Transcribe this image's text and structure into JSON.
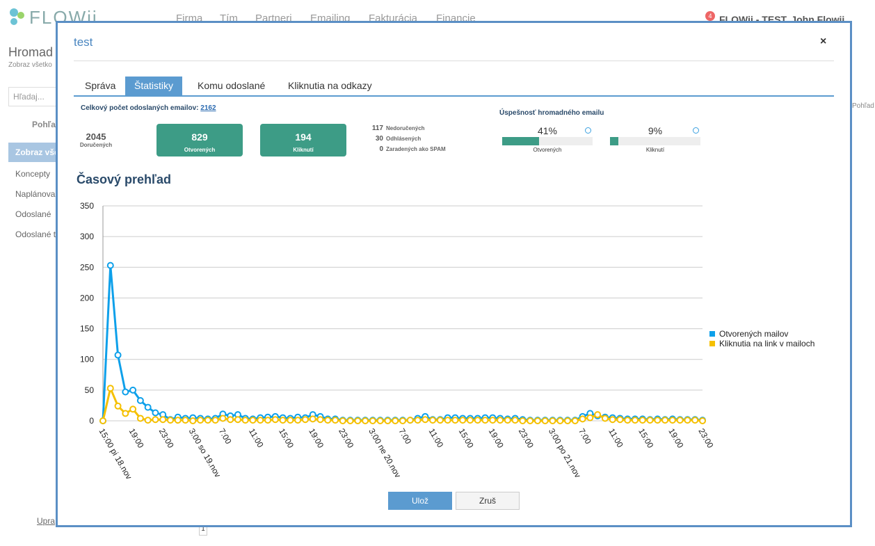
{
  "app": {
    "logo": "FLOWii",
    "nav": [
      "Firma",
      "Tím",
      "Partneri",
      "Emailing",
      "Fakturácia",
      "Financie"
    ],
    "badge": "4",
    "user": "FLOWii - TEST, John Flowii",
    "sidebar": {
      "title": "Hromad",
      "subtitle": "Zobraz všetko",
      "search": "Hľadaj...",
      "view": "Pohľa",
      "items": [
        "Zobraz vše",
        "Koncepty",
        "Naplánova",
        "Odoslané",
        "Odoslané t"
      ],
      "footer": "Upra"
    },
    "right_label": "Pohľad",
    "pagination": "1"
  },
  "modal": {
    "title": "test",
    "close": "×",
    "tabs": [
      "Správa",
      "Štatistiky",
      "Komu odoslané",
      "Kliknutia na odkazy"
    ],
    "summary": {
      "label": "Celkový počet odoslaných emailov:",
      "total": "2162"
    },
    "delivered": {
      "value": "2045",
      "label": "Doručených"
    },
    "opened": {
      "value": "829",
      "label": "Otvorených"
    },
    "clicked": {
      "value": "194",
      "label": "Kliknutí"
    },
    "other": [
      {
        "value": "117",
        "label": "Nedoručených"
      },
      {
        "value": "30",
        "label": "Odhlásených"
      },
      {
        "value": "0",
        "label": "Zaradených ako SPAM"
      }
    ],
    "success": {
      "title": "Úspešnosť hromadného emailu",
      "items": [
        {
          "value": 41,
          "label": "41%",
          "name": "Otvorených"
        },
        {
          "value": 9,
          "label": "9%",
          "name": "Kliknutí"
        }
      ]
    },
    "buttons": {
      "save": "Ulož",
      "cancel": "Zruš"
    }
  },
  "chart_data": {
    "type": "line",
    "title": "Časový prehľad",
    "categories": [
      "15:00 pi 18.nov",
      null,
      null,
      null,
      "19:00",
      null,
      null,
      null,
      "23:00",
      null,
      null,
      null,
      "3:00 so 19.nov",
      null,
      null,
      null,
      "7:00",
      null,
      null,
      null,
      "11:00",
      null,
      null,
      null,
      "15:00",
      null,
      null,
      null,
      "19:00",
      null,
      null,
      null,
      "23:00",
      null,
      null,
      null,
      "3:00 ne 20.nov",
      null,
      null,
      null,
      "7:00",
      null,
      null,
      null,
      "11:00",
      null,
      null,
      null,
      "15:00",
      null,
      null,
      null,
      "19:00",
      null,
      null,
      null,
      "23:00",
      null,
      null,
      null,
      "3:00 po 21.nov",
      null,
      null,
      null,
      "7:00",
      null,
      null,
      null,
      "11:00",
      null,
      null,
      null,
      "15:00",
      null,
      null,
      null,
      "19:00",
      null,
      null,
      null,
      "23:00"
    ],
    "series": [
      {
        "name": "Otvorených mailov",
        "color": "#0ea0ea",
        "values": [
          0,
          253,
          107,
          47,
          50,
          33,
          22,
          13,
          10,
          2,
          6,
          4,
          5,
          4,
          3,
          4,
          11,
          8,
          10,
          4,
          3,
          5,
          6,
          7,
          5,
          4,
          6,
          5,
          10,
          7,
          3,
          3,
          1,
          1,
          1,
          1,
          1,
          1,
          1,
          1,
          1,
          1,
          4,
          7,
          2,
          2,
          5,
          5,
          4,
          4,
          4,
          5,
          5,
          4,
          3,
          4,
          2,
          1,
          1,
          1,
          1,
          1,
          1,
          1,
          7,
          12,
          8,
          6,
          5,
          4,
          3,
          3,
          3,
          2,
          3,
          2,
          3,
          2,
          2,
          2,
          1
        ]
      },
      {
        "name": "Kliknutia na link v mailoch",
        "color": "#f5c000",
        "values": [
          0,
          53,
          24,
          12,
          19,
          4,
          1,
          2,
          2,
          1,
          1,
          1,
          0,
          1,
          1,
          1,
          4,
          2,
          2,
          1,
          1,
          1,
          1,
          2,
          1,
          1,
          1,
          2,
          3,
          2,
          1,
          1,
          0,
          0,
          0,
          0,
          0,
          0,
          0,
          0,
          0,
          1,
          1,
          2,
          1,
          1,
          1,
          1,
          1,
          1,
          1,
          1,
          1,
          1,
          1,
          1,
          0,
          0,
          0,
          0,
          0,
          0,
          0,
          0,
          3,
          5,
          10,
          4,
          2,
          2,
          1,
          1,
          1,
          1,
          1,
          1,
          1,
          1,
          1,
          1,
          0
        ]
      }
    ],
    "ylim": [
      0,
      350
    ],
    "yticks": [
      0,
      50,
      100,
      150,
      200,
      250,
      300,
      350
    ],
    "grid": true,
    "legend": "right"
  }
}
